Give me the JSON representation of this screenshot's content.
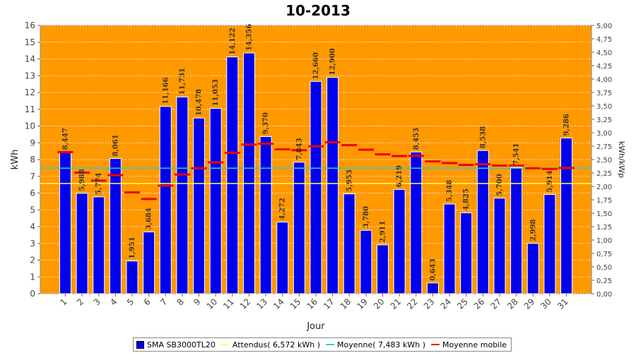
{
  "chart_data": {
    "type": "bar",
    "title": "10-2013",
    "xlabel": "Jour",
    "ylabel": "kWh",
    "y2label": "kWh/kWp",
    "ylim": [
      0,
      16
    ],
    "y2lim": [
      0,
      5
    ],
    "y_ticks": [
      "0",
      "1",
      "2",
      "3",
      "4",
      "5",
      "6",
      "7",
      "8",
      "9",
      "10",
      "11",
      "12",
      "13",
      "14",
      "15",
      "16"
    ],
    "y2_ticks": [
      "0,00",
      "0,25",
      "0,50",
      "0,75",
      "1,00",
      "1,25",
      "1,50",
      "1,75",
      "2,00",
      "2,25",
      "2,50",
      "2,75",
      "3,00",
      "3,25",
      "3,50",
      "3,75",
      "4,00",
      "4,25",
      "4,50",
      "4,75",
      "5,00"
    ],
    "categories": [
      "1",
      "2",
      "3",
      "4",
      "5",
      "6",
      "7",
      "8",
      "9",
      "10",
      "11",
      "12",
      "13",
      "14",
      "15",
      "16",
      "17",
      "18",
      "19",
      "20",
      "21",
      "22",
      "23",
      "24",
      "25",
      "26",
      "27",
      "28",
      "29",
      "30",
      "31"
    ],
    "series": [
      {
        "name": "SMA SB3000TL20",
        "kind": "bar",
        "color": "#0000ee",
        "values": [
          8.447,
          5.988,
          5.774,
          8.061,
          1.951,
          3.684,
          11.166,
          11.731,
          10.478,
          11.053,
          14.122,
          14.356,
          9.37,
          4.272,
          7.843,
          12.66,
          12.9,
          5.953,
          3.78,
          2.911,
          6.219,
          8.453,
          0.643,
          5.348,
          4.825,
          8.538,
          5.7,
          7.541,
          2.998,
          5.914,
          9.286
        ],
        "labels": [
          "8,447",
          "5,988",
          "5,774",
          "8,061",
          "1,951",
          "3,684",
          "11,166",
          "11,731",
          "10,478",
          "11,053",
          "14,122",
          "14,356",
          "9,370",
          "4,272",
          "7,843",
          "12,660",
          "12,900",
          "5,953",
          "3,780",
          "2,911",
          "6,219",
          "8,453",
          "0,643",
          "5,348",
          "4,825",
          "8,538",
          "5,700",
          "7,541",
          "2,998",
          "5,914",
          "9,286"
        ]
      },
      {
        "name": "Attendus( 6,572 kWh )",
        "kind": "hline",
        "color": "#ffff66",
        "value": 6.572
      },
      {
        "name": "Moyenne( 7,483 kWh )",
        "kind": "hline",
        "color": "#33cccc",
        "value": 7.483
      },
      {
        "name": "Moyenne mobile",
        "kind": "moving",
        "color": "#ee0000",
        "values": [
          8.45,
          7.22,
          6.74,
          7.07,
          6.04,
          5.65,
          6.45,
          7.11,
          7.48,
          7.83,
          8.4,
          8.9,
          8.94,
          8.61,
          8.56,
          8.79,
          9.03,
          8.86,
          8.59,
          8.31,
          8.21,
          8.22,
          7.89,
          7.79,
          7.68,
          7.72,
          7.64,
          7.64,
          7.48,
          7.44,
          7.5
        ]
      }
    ],
    "grid": true,
    "legend": "bottom"
  },
  "legend": {
    "items": [
      {
        "label": "SMA SB3000TL20",
        "color": "#0000ee",
        "shape": "box"
      },
      {
        "label": "Attendus( 6,572 kWh )",
        "color": "#ffff66",
        "shape": "line"
      },
      {
        "label": "Moyenne( 7,483 kWh )",
        "color": "#33cccc",
        "shape": "line"
      },
      {
        "label": "Moyenne mobile",
        "color": "#ee0000",
        "shape": "line"
      }
    ]
  },
  "colors": {
    "plot_bg": "#ff9900",
    "grid": "#ffffff",
    "bar": "#0000ee"
  }
}
